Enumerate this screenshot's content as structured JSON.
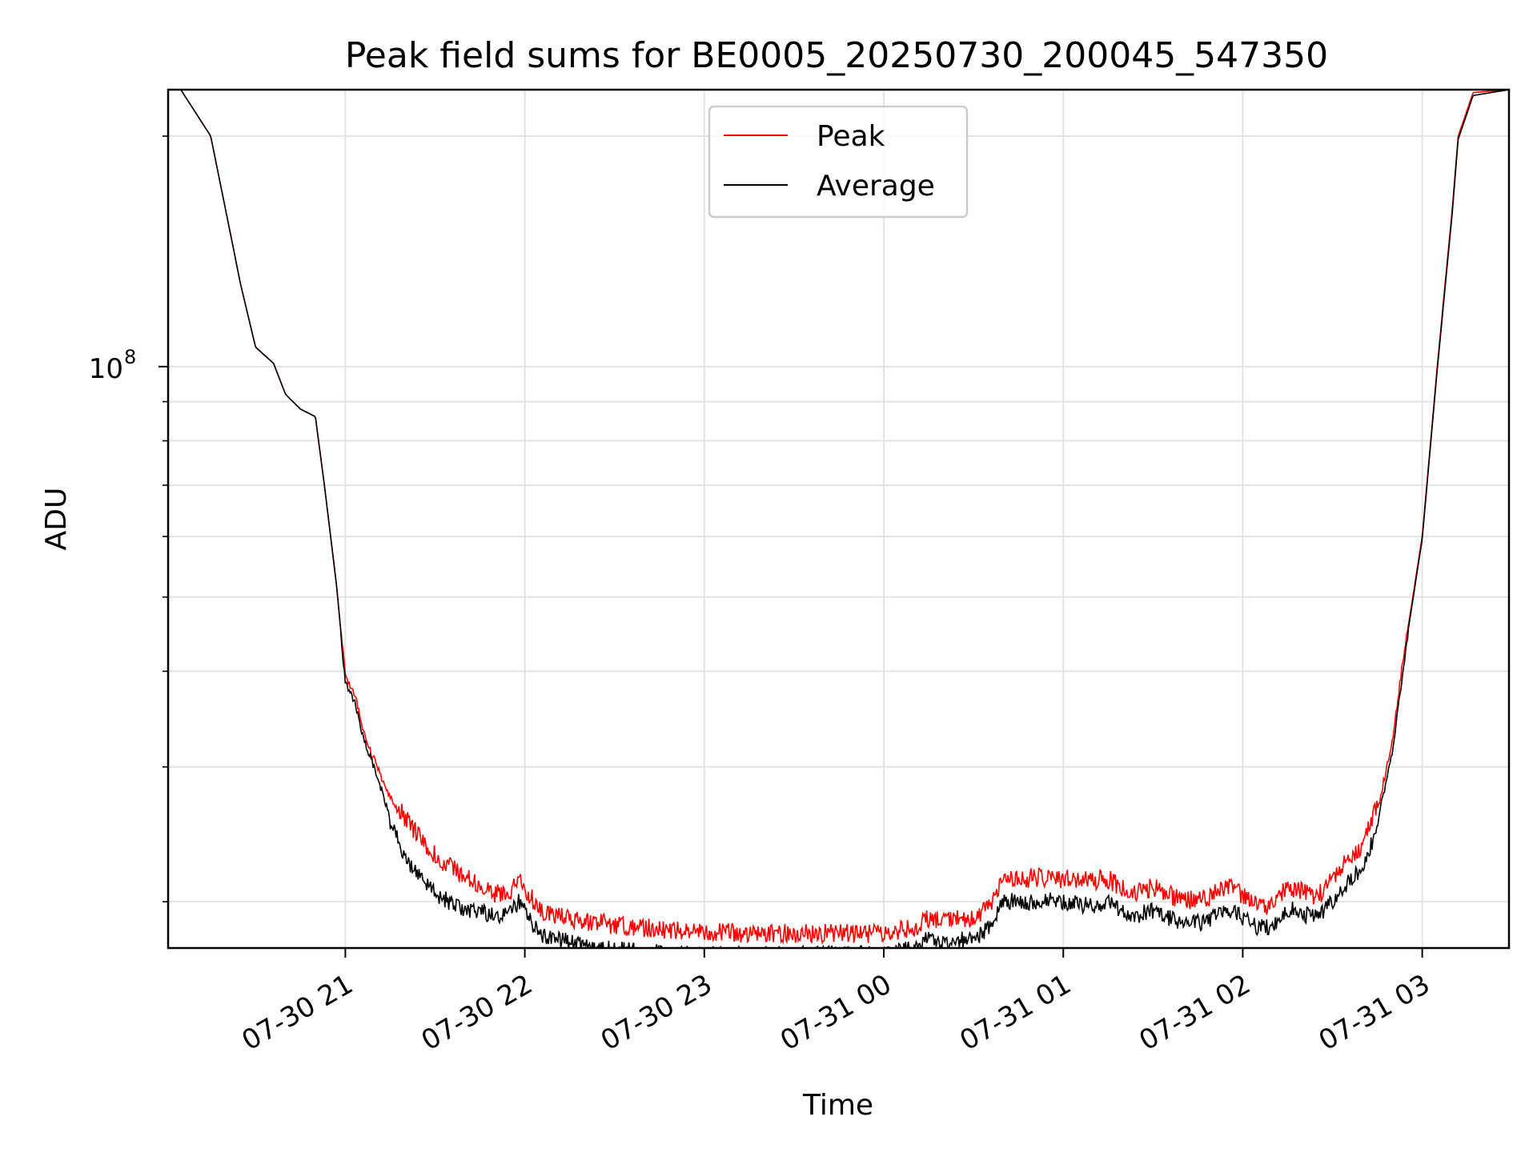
{
  "chart_data": {
    "type": "line",
    "title": "Peak field sums for BE0005_20250730_200045_547350",
    "xlabel": "Time",
    "ylabel": "ADU",
    "y_scale": "log",
    "grid": true,
    "grid_minor": true,
    "legend_position": "upper center",
    "x_range": [
      "2025-07-30 20:00:45",
      "2025-07-31 03:29:00"
    ],
    "ylim": [
      17400000,
      230000000
    ],
    "x_ticks": [
      {
        "t": "2025-07-30 21:00",
        "label": "07-30 21"
      },
      {
        "t": "2025-07-30 22:00",
        "label": "07-30 22"
      },
      {
        "t": "2025-07-30 23:00",
        "label": "07-30 23"
      },
      {
        "t": "2025-07-31 00:00",
        "label": "07-31 00"
      },
      {
        "t": "2025-07-31 01:00",
        "label": "07-31 01"
      },
      {
        "t": "2025-07-31 02:00",
        "label": "07-31 02"
      },
      {
        "t": "2025-07-31 03:00",
        "label": "07-31 03"
      }
    ],
    "y_major_ticks": [
      {
        "value": 100000000,
        "label_base": "10",
        "label_exp": "8"
      }
    ],
    "y_minor_ticks": [
      20000000,
      30000000,
      40000000,
      50000000,
      60000000,
      70000000,
      80000000,
      90000000,
      200000000
    ],
    "series": [
      {
        "name": "Peak",
        "color": "#ff0000",
        "x": [
          "2025-07-30 20:00:45",
          "2025-07-30 20:05",
          "2025-07-30 20:15",
          "2025-07-30 20:20",
          "2025-07-30 20:25",
          "2025-07-30 20:30",
          "2025-07-30 20:36",
          "2025-07-30 20:40",
          "2025-07-30 20:45",
          "2025-07-30 20:50",
          "2025-07-30 20:53",
          "2025-07-30 20:57",
          "2025-07-30 21:00",
          "2025-07-30 21:03",
          "2025-07-30 21:06",
          "2025-07-30 21:10",
          "2025-07-30 21:15",
          "2025-07-30 21:20",
          "2025-07-30 21:25",
          "2025-07-30 21:30",
          "2025-07-30 21:40",
          "2025-07-30 21:50",
          "2025-07-30 21:55",
          "2025-07-30 21:58",
          "2025-07-30 22:05",
          "2025-07-30 22:20",
          "2025-07-30 22:40",
          "2025-07-30 23:00",
          "2025-07-30 23:20",
          "2025-07-30 23:40",
          "2025-07-31 00:00",
          "2025-07-31 00:10",
          "2025-07-31 00:15",
          "2025-07-31 00:20",
          "2025-07-31 00:30",
          "2025-07-31 00:36",
          "2025-07-31 00:40",
          "2025-07-31 00:45",
          "2025-07-31 00:52",
          "2025-07-31 01:00",
          "2025-07-31 01:08",
          "2025-07-31 01:15",
          "2025-07-31 01:23",
          "2025-07-31 01:30",
          "2025-07-31 01:40",
          "2025-07-31 01:48",
          "2025-07-31 01:55",
          "2025-07-31 02:05",
          "2025-07-31 02:10",
          "2025-07-31 02:15",
          "2025-07-31 02:25",
          "2025-07-31 02:35",
          "2025-07-31 02:40",
          "2025-07-31 02:45",
          "2025-07-31 02:50",
          "2025-07-31 02:55",
          "2025-07-31 03:00",
          "2025-07-31 03:05",
          "2025-07-31 03:10",
          "2025-07-31 03:12",
          "2025-07-31 03:17",
          "2025-07-31 03:29"
        ],
        "values": [
          230000000,
          230000000,
          200000000,
          160000000,
          128000000,
          106000000,
          101000000,
          92000000,
          88000000,
          86000000,
          70000000,
          52000000,
          39000000,
          37000000,
          33000000,
          30000000,
          27000000,
          25000000,
          23600000,
          22300000,
          20900000,
          19900000,
          20000000,
          20800000,
          18900000,
          18300000,
          17950000,
          17750000,
          17650000,
          17650000,
          17650000,
          17950000,
          18500000,
          18300000,
          18500000,
          19200000,
          21000000,
          20800000,
          20900000,
          20800000,
          20700000,
          20800000,
          19900000,
          20300000,
          19500000,
          19600000,
          20400000,
          19200000,
          19200000,
          20400000,
          19700000,
          22000000,
          23000000,
          26000000,
          32000000,
          45000000,
          60000000,
          100000000,
          160000000,
          200000000,
          228000000,
          230000000
        ],
        "noise": 0.06
      },
      {
        "name": "Average",
        "color": "#000000",
        "x": [
          "2025-07-30 20:00:45",
          "2025-07-30 20:05",
          "2025-07-30 20:15",
          "2025-07-30 20:20",
          "2025-07-30 20:25",
          "2025-07-30 20:30",
          "2025-07-30 20:36",
          "2025-07-30 20:40",
          "2025-07-30 20:45",
          "2025-07-30 20:50",
          "2025-07-30 20:53",
          "2025-07-30 20:57",
          "2025-07-30 21:00",
          "2025-07-30 21:03",
          "2025-07-30 21:06",
          "2025-07-30 21:10",
          "2025-07-30 21:15",
          "2025-07-30 21:20",
          "2025-07-30 21:25",
          "2025-07-30 21:30",
          "2025-07-30 21:40",
          "2025-07-30 21:50",
          "2025-07-30 21:55",
          "2025-07-30 21:58",
          "2025-07-30 22:05",
          "2025-07-30 22:20",
          "2025-07-30 22:40",
          "2025-07-30 23:00",
          "2025-07-30 23:20",
          "2025-07-30 23:40",
          "2025-07-31 00:00",
          "2025-07-31 00:10",
          "2025-07-31 00:15",
          "2025-07-31 00:20",
          "2025-07-31 00:30",
          "2025-07-31 00:36",
          "2025-07-31 00:40",
          "2025-07-31 00:45",
          "2025-07-31 00:52",
          "2025-07-31 01:00",
          "2025-07-31 01:08",
          "2025-07-31 01:15",
          "2025-07-31 01:23",
          "2025-07-31 01:30",
          "2025-07-31 01:40",
          "2025-07-31 01:48",
          "2025-07-31 01:55",
          "2025-07-31 02:05",
          "2025-07-31 02:10",
          "2025-07-31 02:15",
          "2025-07-31 02:25",
          "2025-07-31 02:35",
          "2025-07-31 02:40",
          "2025-07-31 02:45",
          "2025-07-31 02:50",
          "2025-07-31 02:55",
          "2025-07-31 03:00",
          "2025-07-31 03:05",
          "2025-07-31 03:10",
          "2025-07-31 03:12",
          "2025-07-31 03:17",
          "2025-07-31 03:29"
        ],
        "values": [
          230000000,
          230000000,
          200000000,
          160000000,
          128000000,
          106000000,
          101000000,
          92000000,
          88000000,
          86000000,
          70000000,
          52000000,
          39000000,
          37000000,
          33000000,
          30000000,
          26000000,
          23500000,
          22000000,
          21000000,
          20000000,
          19700000,
          19800000,
          20500000,
          18600000,
          17950000,
          17650000,
          17500000,
          17500000,
          17550000,
          17550000,
          17850000,
          18400000,
          18100000,
          18400000,
          19000000,
          20700000,
          20400000,
          20600000,
          20500000,
          20300000,
          20400000,
          19600000,
          20000000,
          19200000,
          19300000,
          20100000,
          19000000,
          19000000,
          20100000,
          19500000,
          21700000,
          22700000,
          25700000,
          31600000,
          44500000,
          59500000,
          99000000,
          158000000,
          198000000,
          226000000,
          230000000
        ],
        "noise": 0.05
      }
    ]
  }
}
